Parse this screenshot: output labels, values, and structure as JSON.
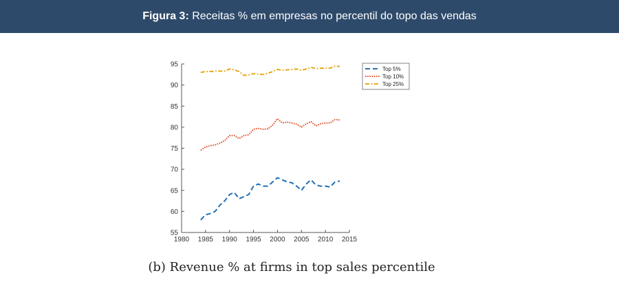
{
  "header": {
    "figure_label": "Figura 3:",
    "title": "Receitas % em empresas no percentil do topo das vendas",
    "background": "#2e4a6b"
  },
  "caption": "(b) Revenue % at firms in top sales percentile",
  "chart_data": {
    "type": "line",
    "title": "",
    "xlabel": "",
    "ylabel": "",
    "xlim": [
      1980,
      2015
    ],
    "ylim": [
      55,
      95
    ],
    "x_ticks": [
      1980,
      1985,
      1990,
      1995,
      2000,
      2005,
      2010,
      2015
    ],
    "y_ticks": [
      55,
      60,
      65,
      70,
      75,
      80,
      85,
      90,
      95
    ],
    "legend_position": "top-right",
    "x": [
      1984,
      1985,
      1986,
      1987,
      1988,
      1989,
      1990,
      1991,
      1992,
      1993,
      1994,
      1995,
      1996,
      1997,
      1998,
      1999,
      2000,
      2001,
      2002,
      2003,
      2004,
      2005,
      2006,
      2007,
      2008,
      2009,
      2010,
      2011,
      2012,
      2013
    ],
    "series": [
      {
        "name": "Top 5%",
        "color": "#1f6fb4",
        "style": "dashed",
        "values": [
          58.0,
          59.2,
          59.5,
          60.0,
          61.5,
          62.5,
          64.0,
          64.5,
          63.0,
          63.5,
          64.0,
          66.0,
          66.5,
          66.0,
          66.0,
          67.0,
          68.0,
          67.5,
          67.0,
          66.8,
          66.0,
          65.0,
          66.5,
          67.5,
          66.3,
          66.0,
          66.0,
          65.8,
          67.0,
          67.2
        ]
      },
      {
        "name": "Top 10%",
        "color": "#e0512b",
        "style": "dotted",
        "values": [
          74.5,
          75.3,
          75.6,
          75.8,
          76.2,
          76.8,
          78.0,
          78.0,
          77.3,
          78.0,
          78.2,
          79.5,
          79.7,
          79.5,
          79.6,
          80.5,
          82.0,
          81.0,
          81.2,
          81.0,
          80.7,
          80.0,
          80.8,
          81.3,
          80.3,
          80.8,
          81.0,
          81.0,
          81.8,
          81.7
        ]
      },
      {
        "name": "Top 25%",
        "color": "#e8a717",
        "style": "dashdot",
        "values": [
          93.0,
          93.2,
          93.2,
          93.3,
          93.3,
          93.3,
          93.8,
          93.6,
          93.2,
          92.3,
          92.4,
          92.7,
          92.6,
          92.5,
          92.8,
          93.2,
          93.7,
          93.5,
          93.6,
          93.7,
          93.8,
          93.5,
          93.8,
          94.2,
          93.9,
          94.0,
          94.0,
          94.0,
          94.5,
          94.4
        ]
      }
    ]
  }
}
